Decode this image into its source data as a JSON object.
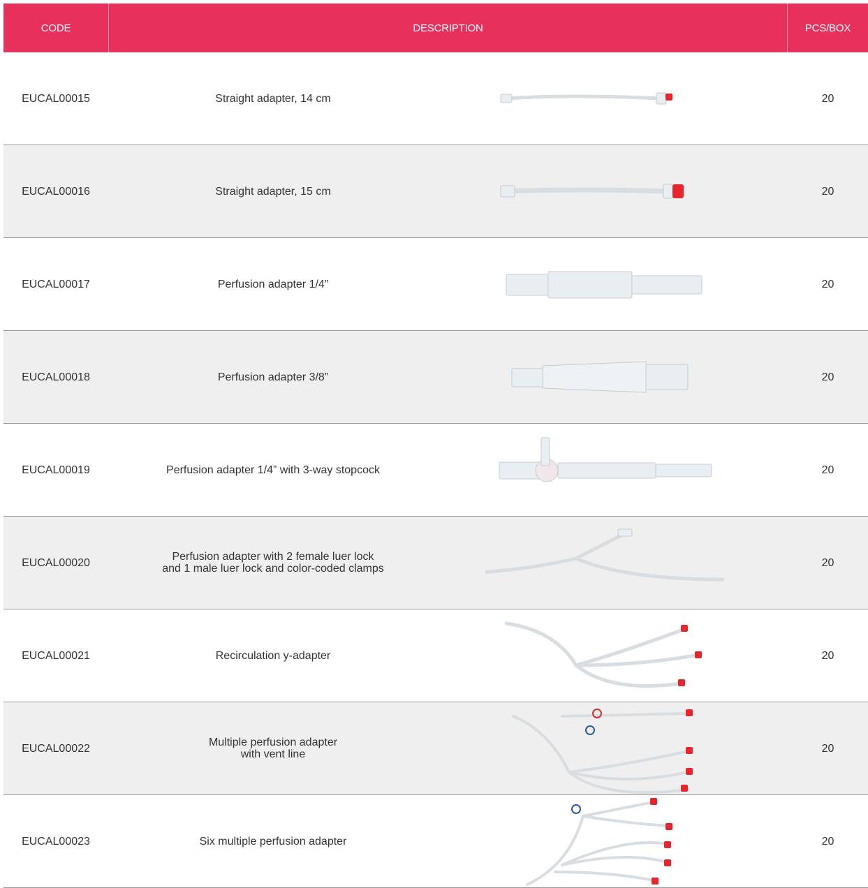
{
  "table": {
    "header": [
      "CODE",
      "DESCRIPTION",
      "PCS/BOX"
    ],
    "rows": [
      [
        "EUCAL00015",
        "Straight adapter, 14 cm",
        20
      ],
      [
        "EUCAL00016",
        "Straight adapter, 15 cm",
        20
      ],
      [
        "EUCAL00017",
        "Perfusion adapter 1/4”",
        20
      ],
      [
        "EUCAL00018",
        "Perfusion adapter 3/8”",
        20
      ],
      [
        "EUCAL00019",
        "Perfusion adapter 1/4” with 3-way stopcock",
        20
      ],
      [
        "EUCAL00020",
        "Perfusion adapter with 2 female luer lock\nand 1 male luer lock and color-coded clamps",
        20
      ],
      [
        "EUCAL00021",
        "Recirculation y-adapter",
        20
      ],
      [
        "EUCAL00022",
        "Multiple perfusion adapter\nwith vent line",
        20
      ],
      [
        "EUCAL00023",
        "Six multiple perfusion adapter",
        20
      ]
    ]
  }
}
